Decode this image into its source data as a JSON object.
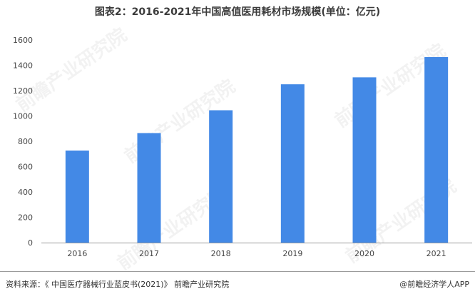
{
  "page": {
    "title": "图表2：2016-2021年中国高值医用耗材市场规模(单位：亿元)",
    "source": "资料来源：《 中国医疗器械行业蓝皮书(2021)》 前瞻产业研究院",
    "brand": "@前瞻经济学人APP",
    "watermark": "前瞻产业研究院"
  },
  "chart_data": {
    "type": "bar",
    "title": "图表2：2016-2021年中国高值医用耗材市场规模(单位：亿元)",
    "categories": [
      "2016",
      "2017",
      "2018",
      "2019",
      "2020",
      "2021"
    ],
    "values": [
      727,
      865,
      1045,
      1250,
      1305,
      1465
    ],
    "ylim": [
      0,
      1600
    ],
    "yticks": [
      0,
      200,
      400,
      600,
      800,
      1000,
      1200,
      1400,
      1600
    ],
    "xlabel": "",
    "ylabel": "",
    "grid": false,
    "bar_color": "#4389e6"
  }
}
